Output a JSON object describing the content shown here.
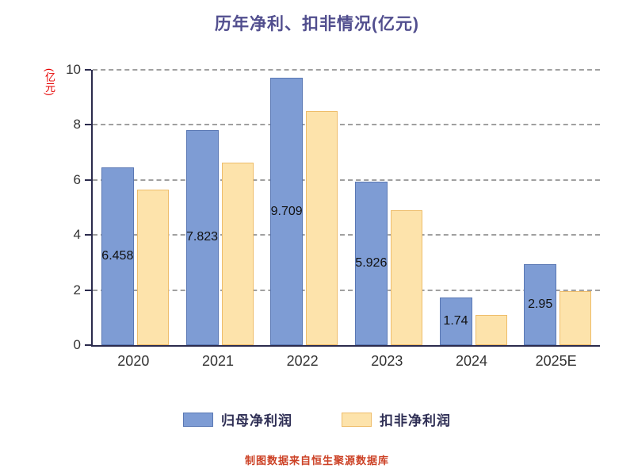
{
  "footer": "制图数据来自恒生聚源数据库",
  "colors": {
    "title": "#514e8e",
    "axis": "#2b2b4d",
    "grid": "#a0a0a0",
    "tick_text": "#333333",
    "ylabel": "#e60000",
    "footer": "#cc4125",
    "series1_fill": "#7e9cd4",
    "series1_border": "#5a78b4",
    "series2_fill": "#fde3ab",
    "series2_border": "#eebd6a",
    "bar_label": "#111111",
    "legend_text": "#2f2f55"
  },
  "chart_data": {
    "type": "bar",
    "title": "历年净利、扣非情况(亿元)",
    "ylabel": "(亿元)",
    "xlabel": "",
    "categories": [
      "2020",
      "2021",
      "2022",
      "2023",
      "2024",
      "2025E"
    ],
    "series": [
      {
        "name": "归母净利润",
        "values": [
          6.458,
          7.823,
          9.709,
          5.926,
          1.74,
          2.95
        ],
        "labels": [
          "6.458",
          "7.823",
          "9.709",
          "5.926",
          "1.74",
          "2.95"
        ]
      },
      {
        "name": "扣非净利润",
        "values": [
          5.65,
          6.62,
          8.5,
          4.9,
          1.1,
          1.95
        ],
        "labels": [
          "",
          "",
          "",
          "",
          "",
          ""
        ]
      }
    ],
    "ylim": [
      0,
      10
    ],
    "yticks": [
      0,
      2,
      4,
      6,
      8,
      10
    ],
    "grid": "horizontal dashed",
    "legend_position": "bottom"
  }
}
